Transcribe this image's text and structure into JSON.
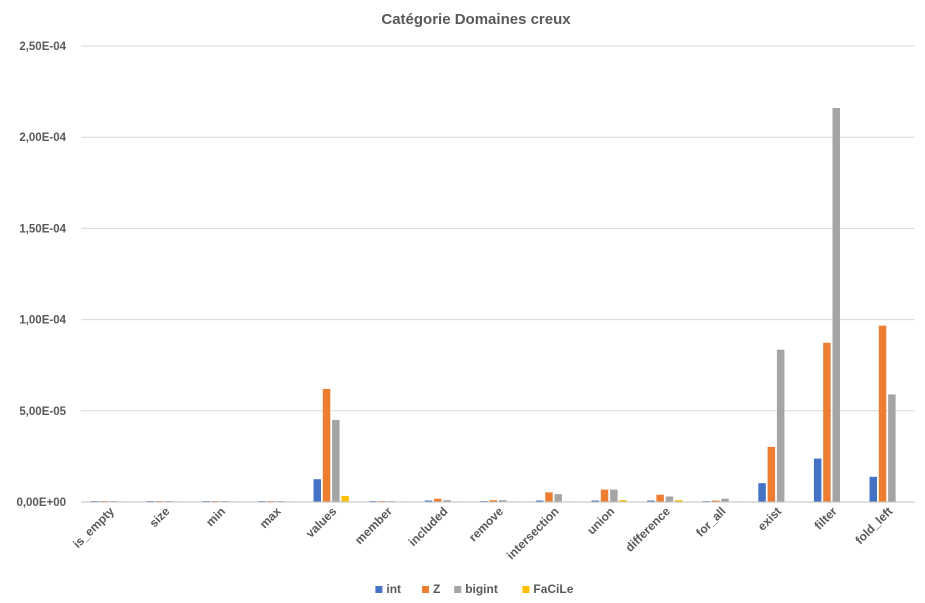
{
  "chart_data": {
    "type": "bar",
    "title": "Catégorie Domaines creux",
    "categories": [
      "is_empty",
      "size",
      "min",
      "max",
      "values",
      "member",
      "included",
      "remove",
      "intersection",
      "union",
      "difference",
      "for_all",
      "exist",
      "filter",
      "fold_left"
    ],
    "series": [
      {
        "name": "int",
        "color": "#4472C4",
        "values": [
          5e-07,
          5e-07,
          5e-07,
          5e-07,
          1.25e-05,
          5e-07,
          8e-07,
          5e-07,
          8e-07,
          8e-07,
          8e-07,
          5e-07,
          1.03e-05,
          2.38e-05,
          1.38e-05
        ]
      },
      {
        "name": "Z",
        "color": "#ED7D31",
        "values": [
          5e-07,
          5e-07,
          5e-07,
          5e-07,
          6.2e-05,
          5e-07,
          1.8e-06,
          1e-06,
          5.3e-06,
          6.8e-06,
          4e-06,
          8e-07,
          3.02e-05,
          8.73e-05,
          9.67e-05
        ]
      },
      {
        "name": "bigint",
        "color": "#A5A5A5",
        "values": [
          5e-07,
          5e-07,
          5e-07,
          5e-07,
          4.5e-05,
          5e-07,
          1e-06,
          1e-06,
          4.3e-06,
          6.8e-06,
          3e-06,
          1.8e-06,
          8.35e-05,
          0.000216,
          5.9e-05
        ]
      },
      {
        "name": "FaCiLe",
        "color": "#FFC000",
        "values": [
          3e-07,
          3e-07,
          3e-07,
          3e-07,
          3.3e-06,
          3e-07,
          3e-07,
          3e-07,
          3e-07,
          1e-06,
          1e-06,
          3e-07,
          0.0,
          0.0,
          0.0
        ]
      }
    ],
    "ylim": [
      0,
      0.00025
    ],
    "yticks": [
      0,
      5e-05,
      0.0001,
      0.00015,
      0.0002,
      0.00025
    ],
    "ytick_labels": [
      "0,00E+00",
      "5,00E-05",
      "1,00E-04",
      "1,50E-04",
      "2,00E-04",
      "2,50E-04"
    ],
    "xlabel": "",
    "ylabel": "",
    "grid": true,
    "legend_position": "bottom"
  }
}
